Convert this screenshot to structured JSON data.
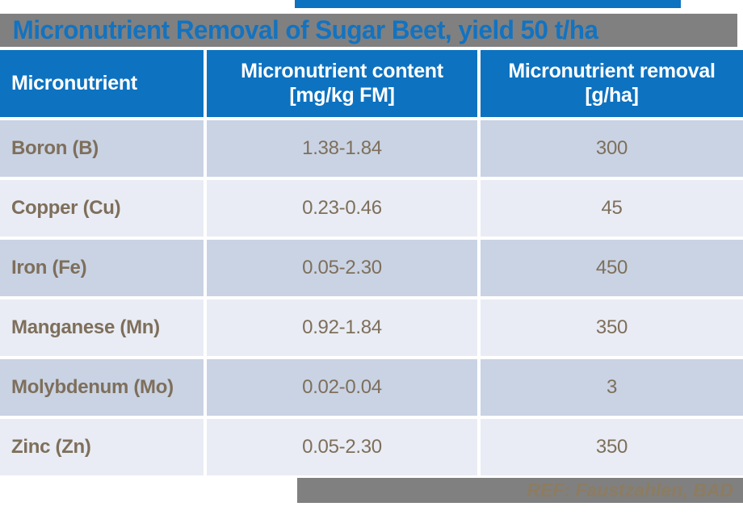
{
  "title": "Micronutrient Removal of Sugar Beet, yield 50 t/ha",
  "table": {
    "columns": [
      {
        "label": "Micronutrient",
        "unit": ""
      },
      {
        "label": "Micronutrient content",
        "unit": "[mg/kg FM]"
      },
      {
        "label": "Micronutrient removal",
        "unit": "[g/ha]"
      }
    ],
    "rows": [
      {
        "nutrient": "Boron (B)",
        "content": "1.38-1.84",
        "removal": "300"
      },
      {
        "nutrient": "Copper (Cu)",
        "content": "0.23-0.46",
        "removal": "45"
      },
      {
        "nutrient": "Iron (Fe)",
        "content": "0.05-2.30",
        "removal": "450"
      },
      {
        "nutrient": "Manganese (Mn)",
        "content": "0.92-1.84",
        "removal": "350"
      },
      {
        "nutrient": "Molybdenum (Mo)",
        "content": "0.02-0.04",
        "removal": "3"
      },
      {
        "nutrient": "Zinc (Zn)",
        "content": "0.05-2.30",
        "removal": "350"
      }
    ]
  },
  "footer": {
    "reference": "REF: Faustzahlen, BAD"
  },
  "colors": {
    "header_blue": "#0d72c0",
    "title_text_blue": "#1273c1",
    "title_bar_gray": "#808080",
    "row_dark": "#c9d3e4",
    "row_light": "#e9ecf4",
    "cell_text_brown": "#7e6f5b",
    "footer_bar_gray": "#808080",
    "footer_text_tan": "#8d7c60",
    "accent_strip_blue": "#0d72c0"
  }
}
